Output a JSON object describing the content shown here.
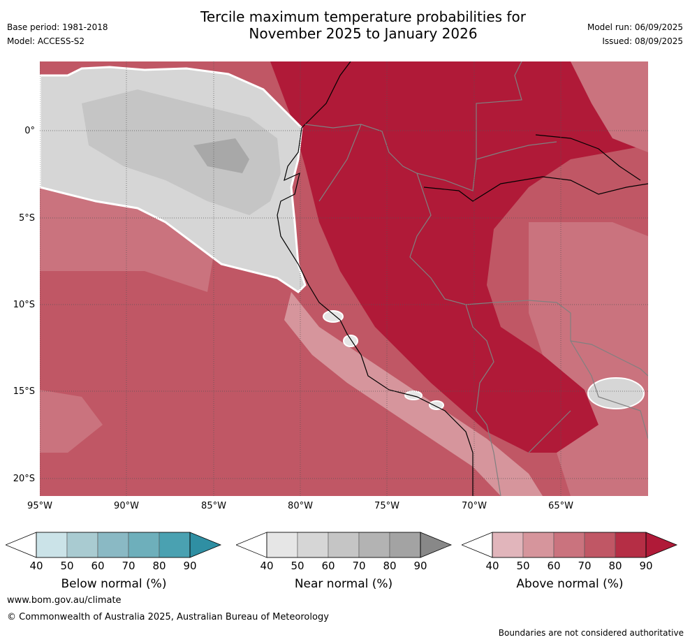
{
  "header": {
    "title_line1": "Tercile maximum temperature probabilities for",
    "title_line2": "November 2025 to January 2026",
    "base_period": "Base period: 1981-2018",
    "model": "Model: ACCESS-S2",
    "model_run": "Model run: 06/09/2025",
    "issued": "Issued: 08/09/2025"
  },
  "map": {
    "lat_labels": [
      "0°",
      "5°S",
      "10°S",
      "15°S",
      "20°S"
    ],
    "lon_labels": [
      "95°W",
      "90°W",
      "85°W",
      "80°W",
      "75°W",
      "70°W",
      "65°W"
    ],
    "graticule": "dotted"
  },
  "colorbars": [
    {
      "title": "Below normal (%)",
      "ticks": [
        "40",
        "50",
        "60",
        "70",
        "80",
        "90"
      ],
      "colors": [
        "#ffffff",
        "#cbe3e8",
        "#a9cbd1",
        "#8ab9c4",
        "#6eafbb",
        "#4aa1b1",
        "#2f8fa3"
      ]
    },
    {
      "title": "Near normal (%)",
      "ticks": [
        "40",
        "50",
        "60",
        "70",
        "80",
        "90"
      ],
      "colors": [
        "#ffffff",
        "#e6e6e6",
        "#d6d6d6",
        "#c5c5c5",
        "#b3b3b3",
        "#a3a3a3",
        "#888888"
      ]
    },
    {
      "title": "Above normal (%)",
      "ticks": [
        "40",
        "50",
        "60",
        "70",
        "80",
        "90"
      ],
      "colors": [
        "#ffffff",
        "#e1b5bb",
        "#d6959c",
        "#ca737e",
        "#c05765",
        "#b52e45",
        "#b01a38"
      ]
    }
  ],
  "footer": {
    "website": "www.bom.gov.au/climate",
    "copyright": "© Commonwealth of Australia 2025, Australian Bureau of Meteorology",
    "disclaimer": "Boundaries are not considered authoritative"
  }
}
